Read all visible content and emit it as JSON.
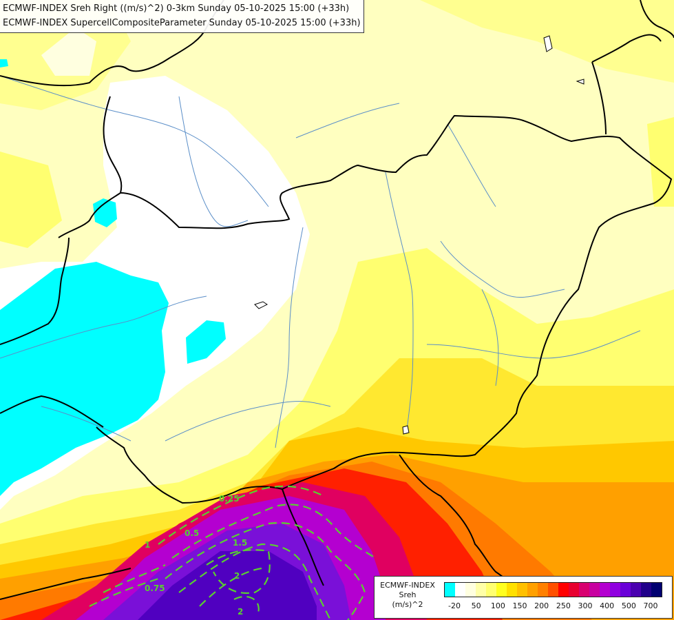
{
  "titles": {
    "line1": "ECMWF-INDEX Sreh Right ((m/s)^2) 0-3km Sunday 05-10-2025 15:00 (+33h)",
    "line2": "ECMWF-INDEX SupercellCompositeParameter Sunday 05-10-2025 15:00 (+33h)"
  },
  "contour_labels": [
    "0.25",
    "0.5",
    "0.75",
    "1",
    "1.5",
    "2",
    "2"
  ],
  "legend": {
    "title_line1": "ECMWF-INDEX",
    "title_line2": "Sreh",
    "title_line3": "(m/s)^2",
    "colors": [
      "#00ffff",
      "#ffffff",
      "#ffffe0",
      "#ffffa8",
      "#ffff70",
      "#ffff20",
      "#ffe000",
      "#ffc000",
      "#ffa000",
      "#ff8000",
      "#ff5000",
      "#ff0000",
      "#e80030",
      "#d80070",
      "#c800a0",
      "#b400d0",
      "#9000e0",
      "#6a00d8",
      "#4a00b0",
      "#20008a",
      "#000070"
    ],
    "ticks": [
      "-20",
      "50",
      "100",
      "150",
      "200",
      "250",
      "300",
      "400",
      "500",
      "700"
    ]
  },
  "palette": {
    "cyan": "#00ffff",
    "white": "#ffffff",
    "light_yellow": "#ffffc0",
    "yellow": "#ffff60",
    "gold": "#ffd000",
    "orange": "#ff8000",
    "red": "#ff0000",
    "magenta": "#d0008a",
    "purple": "#8a00e0",
    "border": "#000000",
    "river": "#5a8ec8",
    "contour": "#50d040"
  }
}
